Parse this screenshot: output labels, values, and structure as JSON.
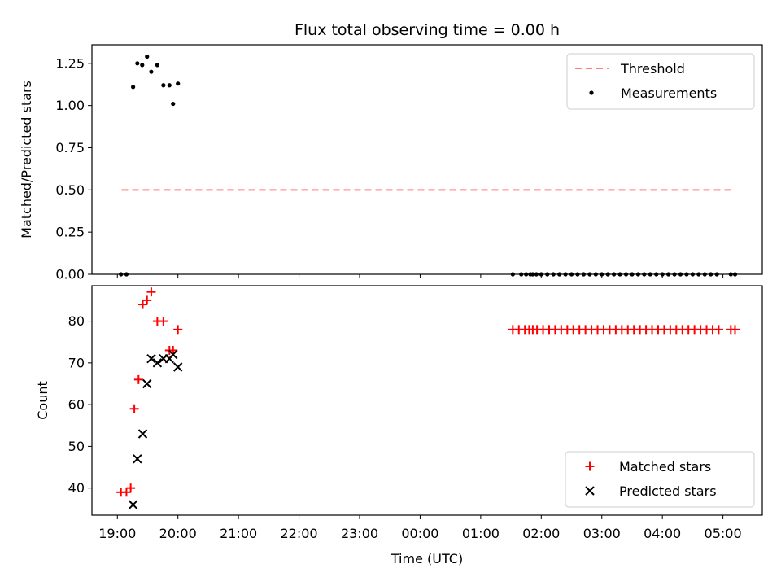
{
  "chart_data": {
    "type": "scatter",
    "title": "Flux total observing time = 0.00 h",
    "xlabel": "Time (UTC)",
    "x_ticks": [
      "19:00",
      "20:00",
      "21:00",
      "22:00",
      "23:00",
      "00:00",
      "01:00",
      "02:00",
      "03:00",
      "04:00",
      "05:00"
    ],
    "x_tick_hours": [
      0,
      1,
      2,
      3,
      4,
      5,
      6,
      7,
      8,
      9,
      10
    ],
    "x_origin_label": "19:00",
    "xlim_hours": [
      -0.42,
      10.65
    ],
    "panels": [
      {
        "ylabel": "Matched/Predicted stars",
        "ylim": [
          0,
          1.36
        ],
        "yticks": [
          0.0,
          0.25,
          0.5,
          0.75,
          1.0,
          1.25
        ],
        "ytick_labels": [
          "0.00",
          "0.25",
          "0.50",
          "0.75",
          "1.00",
          "1.25"
        ],
        "legend_position": "upper right",
        "series": [
          {
            "name": "Threshold",
            "kind": "dashed-line",
            "color": "#ff7f7f",
            "x_hours": [
              0.07,
              10.13
            ],
            "y": [
              0.5,
              0.5
            ]
          },
          {
            "name": "Measurements",
            "kind": "dot",
            "color": "#000000",
            "x_hours": [
              0.06,
              0.15,
              0.26,
              0.33,
              0.41,
              0.49,
              0.56,
              0.66,
              0.76,
              0.86,
              0.92,
              1.0,
              6.53,
              6.67,
              6.75,
              6.82,
              6.86,
              6.92,
              7.0,
              7.1,
              7.2,
              7.3,
              7.4,
              7.5,
              7.6,
              7.7,
              7.8,
              7.9,
              8.0,
              8.1,
              8.2,
              8.3,
              8.4,
              8.5,
              8.6,
              8.7,
              8.8,
              8.9,
              9.0,
              9.1,
              9.2,
              9.3,
              9.4,
              9.5,
              9.6,
              9.7,
              9.8,
              9.9,
              10.13,
              10.2
            ],
            "y": [
              0.0,
              0.0,
              1.11,
              1.25,
              1.24,
              1.29,
              1.2,
              1.24,
              1.12,
              1.12,
              1.01,
              1.13,
              0.0,
              0.0,
              0.0,
              0.0,
              0.0,
              0.0,
              0.0,
              0.0,
              0.0,
              0.0,
              0.0,
              0.0,
              0.0,
              0.0,
              0.0,
              0.0,
              0.0,
              0.0,
              0.0,
              0.0,
              0.0,
              0.0,
              0.0,
              0.0,
              0.0,
              0.0,
              0.0,
              0.0,
              0.0,
              0.0,
              0.0,
              0.0,
              0.0,
              0.0,
              0.0,
              0.0,
              0.0,
              0.0
            ]
          }
        ]
      },
      {
        "ylabel": "Count",
        "ylim": [
          33.5,
          88.5
        ],
        "yticks": [
          40,
          50,
          60,
          70,
          80
        ],
        "ytick_labels": [
          "40",
          "50",
          "60",
          "70",
          "80"
        ],
        "legend_position": "lower right",
        "series": [
          {
            "name": "Matched stars",
            "kind": "plus",
            "color": "#ff0000",
            "x_hours": [
              0.06,
              0.15,
              0.22,
              0.28,
              0.35,
              0.42,
              0.49,
              0.56,
              0.66,
              0.76,
              0.86,
              0.92,
              1.0,
              6.53,
              6.63,
              6.73,
              6.8,
              6.86,
              6.93,
              7.03,
              7.13,
              7.23,
              7.33,
              7.43,
              7.53,
              7.63,
              7.73,
              7.83,
              7.93,
              8.03,
              8.13,
              8.23,
              8.33,
              8.43,
              8.53,
              8.63,
              8.73,
              8.83,
              8.93,
              9.03,
              9.13,
              9.23,
              9.33,
              9.43,
              9.53,
              9.63,
              9.73,
              9.83,
              9.93,
              10.13,
              10.2
            ],
            "y": [
              39,
              39,
              40,
              59,
              66,
              84,
              85,
              87,
              80,
              80,
              73,
              73,
              78,
              78,
              78,
              78,
              78,
              78,
              78,
              78,
              78,
              78,
              78,
              78,
              78,
              78,
              78,
              78,
              78,
              78,
              78,
              78,
              78,
              78,
              78,
              78,
              78,
              78,
              78,
              78,
              78,
              78,
              78,
              78,
              78,
              78,
              78,
              78,
              78,
              78,
              78
            ]
          },
          {
            "name": "Predicted stars",
            "kind": "x",
            "color": "#000000",
            "x_hours": [
              0.26,
              0.33,
              0.42,
              0.49,
              0.56,
              0.66,
              0.76,
              0.86,
              0.92,
              1.0
            ],
            "y": [
              36,
              47,
              53,
              65,
              71,
              70,
              71,
              71,
              72,
              69
            ]
          }
        ]
      }
    ]
  }
}
